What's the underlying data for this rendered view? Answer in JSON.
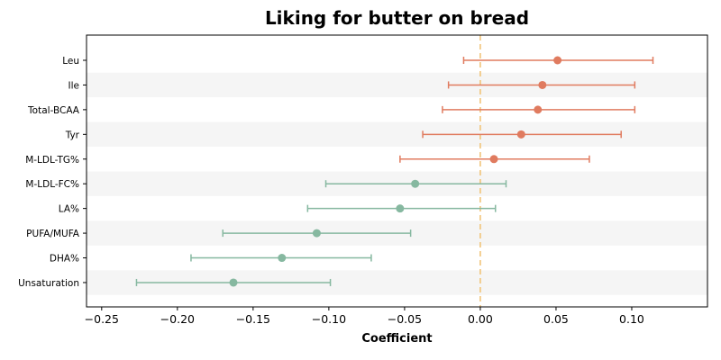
{
  "chart_data": {
    "type": "scatter",
    "title": "Liking for butter on bread",
    "xlabel": "Coefficient",
    "ylabel": "",
    "xlim": [
      -0.26,
      0.15
    ],
    "xticks": [
      -0.25,
      -0.2,
      -0.15,
      -0.1,
      -0.05,
      0.0,
      0.05,
      0.1
    ],
    "xtick_labels": [
      "−0.25",
      "−0.20",
      "−0.15",
      "−0.10",
      "−0.05",
      "0.00",
      "0.05",
      "0.10"
    ],
    "reference_line": {
      "x": 0.0,
      "color": "#f0c070",
      "style": "dashed"
    },
    "grid": false,
    "legend": "none",
    "row_banding": true,
    "colors": {
      "positive": "#e07b5f",
      "negative": "#86b8a0",
      "band": "#f5f5f5",
      "axis": "#000000"
    },
    "rows": [
      {
        "label": "Leu",
        "estimate": 0.051,
        "ci_low": -0.011,
        "ci_high": 0.114
      },
      {
        "label": "Ile",
        "estimate": 0.041,
        "ci_low": -0.021,
        "ci_high": 0.102
      },
      {
        "label": "Total-BCAA",
        "estimate": 0.038,
        "ci_low": -0.025,
        "ci_high": 0.102
      },
      {
        "label": "Tyr",
        "estimate": 0.027,
        "ci_low": -0.038,
        "ci_high": 0.093
      },
      {
        "label": "M-LDL-TG%",
        "estimate": 0.009,
        "ci_low": -0.053,
        "ci_high": 0.072
      },
      {
        "label": "M-LDL-FC%",
        "estimate": -0.043,
        "ci_low": -0.102,
        "ci_high": 0.017
      },
      {
        "label": "LA%",
        "estimate": -0.053,
        "ci_low": -0.114,
        "ci_high": 0.01
      },
      {
        "label": "PUFA/MUFA",
        "estimate": -0.108,
        "ci_low": -0.17,
        "ci_high": -0.046
      },
      {
        "label": "DHA%",
        "estimate": -0.131,
        "ci_low": -0.191,
        "ci_high": -0.072
      },
      {
        "label": "Unsaturation",
        "estimate": -0.163,
        "ci_low": -0.227,
        "ci_high": -0.099
      }
    ]
  }
}
